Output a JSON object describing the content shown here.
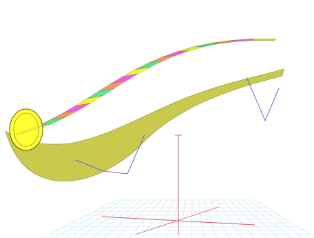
{
  "viewport": {
    "background": "#ffffff",
    "icon": "3d-mesh-viewport"
  },
  "mesh": {
    "name": "segmented-tube-surface",
    "band_colors": [
      "#ff55ff",
      "#ffff33",
      "#55ee99",
      "#ff9966"
    ],
    "band_edge_color": "#8a8a40",
    "wire_color": "#6666dd",
    "underside_color": "#c9c94e"
  },
  "ground": {
    "grid_color": "#bfe6ee",
    "axis_x_color": "#d55a6a",
    "axis_y_color": "#d55a6a",
    "axis_z_color": "#cc6688"
  }
}
